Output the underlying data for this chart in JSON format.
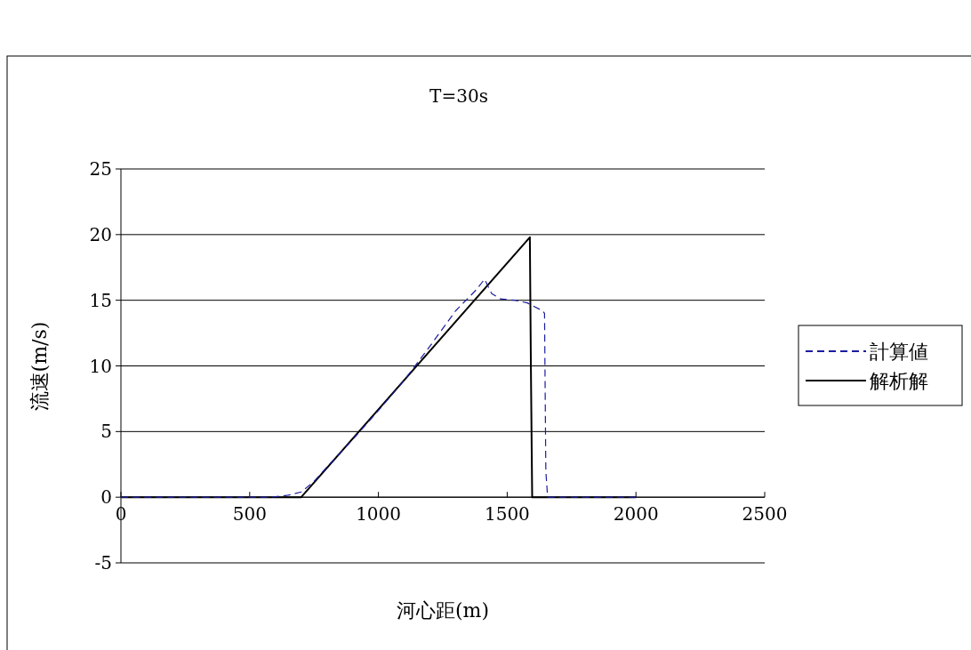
{
  "chart_data": {
    "type": "line",
    "title": "T=30s",
    "xlabel": "河心距(m)",
    "ylabel": "流速(m/s)",
    "xlim": [
      0,
      2500
    ],
    "xticks": [
      0,
      500,
      1000,
      1500,
      2000,
      2500
    ],
    "ylim": [
      -5,
      25
    ],
    "yticks": [
      -5,
      0,
      5,
      10,
      15,
      20,
      25
    ],
    "grid": "y",
    "legend": "right",
    "marker": "none",
    "series": [
      {
        "name": "計算値",
        "color": "#1c1ca0",
        "line_style": "dashed",
        "x": [
          0,
          580,
          650,
          700,
          750,
          800,
          900,
          1000,
          1100,
          1200,
          1300,
          1380,
          1412,
          1440,
          1474,
          1530,
          1578,
          1637,
          1645,
          1650,
          1657,
          2000
        ],
        "values": [
          0,
          0,
          0.15,
          0.4,
          1.2,
          2.3,
          4.4,
          6.6,
          8.9,
          11.5,
          14.2,
          15.8,
          16.6,
          15.5,
          15.1,
          15.0,
          14.8,
          14.2,
          14.0,
          2,
          0,
          0
        ]
      },
      {
        "name": "解析解",
        "color": "#000000",
        "line_style": "solid",
        "x": [
          0,
          700,
          1588,
          1592,
          1597,
          2000
        ],
        "values": [
          0,
          0,
          19.8,
          10,
          0,
          0
        ]
      }
    ]
  }
}
